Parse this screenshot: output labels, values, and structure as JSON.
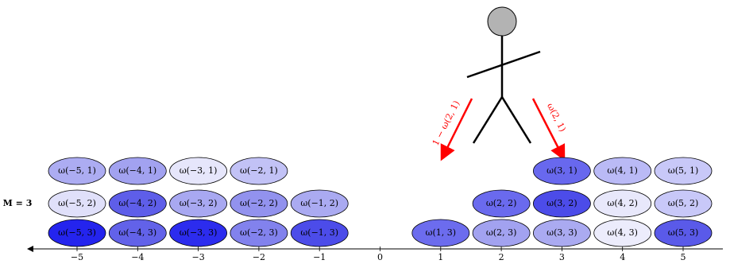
{
  "row_label": "M = 3",
  "axis": {
    "ticks": [
      "−5",
      "−4",
      "−3",
      "−2",
      "−1",
      "0",
      "1",
      "2",
      "3",
      "4",
      "5"
    ]
  },
  "cells": [
    {
      "label": "ω(−5, 1)"
    },
    {
      "label": "ω(−4, 1)"
    },
    {
      "label": "ω(−3, 1)"
    },
    {
      "label": "ω(−2, 1)"
    },
    {
      "label": "ω(3, 1)"
    },
    {
      "label": "ω(4, 1)"
    },
    {
      "label": "ω(5, 1)"
    },
    {
      "label": "ω(−5, 2)"
    },
    {
      "label": "ω(−4, 2)"
    },
    {
      "label": "ω(−3, 2)"
    },
    {
      "label": "ω(−2, 2)"
    },
    {
      "label": "ω(−1, 2)"
    },
    {
      "label": "ω(2, 2)"
    },
    {
      "label": "ω(3, 2)"
    },
    {
      "label": "ω(4, 2)"
    },
    {
      "label": "ω(5, 2)"
    },
    {
      "label": "ω(−5, 3)"
    },
    {
      "label": "ω(−4, 3)"
    },
    {
      "label": "ω(−3, 3)"
    },
    {
      "label": "ω(−2, 3)"
    },
    {
      "label": "ω(−1, 3)"
    },
    {
      "label": "ω(1, 3)"
    },
    {
      "label": "ω(2, 3)"
    },
    {
      "label": "ω(3, 3)"
    },
    {
      "label": "ω(4, 3)"
    },
    {
      "label": "ω(5, 3)"
    }
  ],
  "arrows": [
    {
      "label": "1 − ω(2, 1)"
    },
    {
      "label": "ω(2, 1)"
    }
  ]
}
